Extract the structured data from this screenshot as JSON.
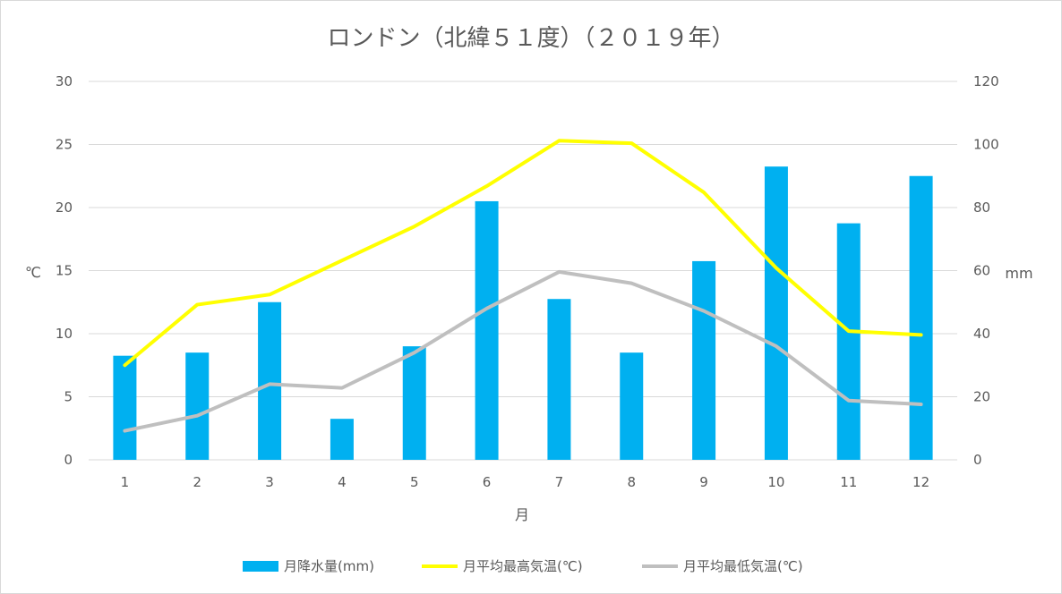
{
  "chart_data": {
    "type": "bar",
    "title": "ロンドン（北緯５１度）（２０１９年）",
    "xlabel": "月",
    "ylabel_left": "℃",
    "ylabel_right": "mm",
    "categories": [
      "1",
      "2",
      "3",
      "4",
      "5",
      "6",
      "7",
      "8",
      "9",
      "10",
      "11",
      "12"
    ],
    "y_left": {
      "min": 0,
      "max": 30,
      "ticks": [
        "0",
        "5",
        "10",
        "15",
        "20",
        "25",
        "30"
      ]
    },
    "y_right": {
      "min": 0,
      "max": 120,
      "ticks": [
        "0",
        "20",
        "40",
        "60",
        "80",
        "100",
        "120"
      ]
    },
    "grid": true,
    "legend_position": "bottom",
    "series": [
      {
        "name": "月降水量(mm)",
        "type": "bar",
        "axis": "right",
        "color": "#00b0f0",
        "values": [
          33,
          34,
          50,
          13,
          36,
          82,
          51,
          34,
          63,
          93,
          75,
          90
        ]
      },
      {
        "name": "月平均最高気温(℃)",
        "type": "line",
        "axis": "left",
        "color": "#ffff00",
        "values": [
          7.5,
          12.3,
          13.1,
          15.8,
          18.5,
          21.7,
          25.3,
          25.1,
          21.2,
          15.2,
          10.2,
          9.9
        ]
      },
      {
        "name": "月平均最低気温(℃)",
        "type": "line",
        "axis": "left",
        "color": "#bfbfbf",
        "values": [
          2.3,
          3.5,
          6.0,
          5.7,
          8.5,
          12.0,
          14.9,
          14.0,
          11.8,
          9.0,
          4.7,
          4.4
        ]
      }
    ]
  }
}
